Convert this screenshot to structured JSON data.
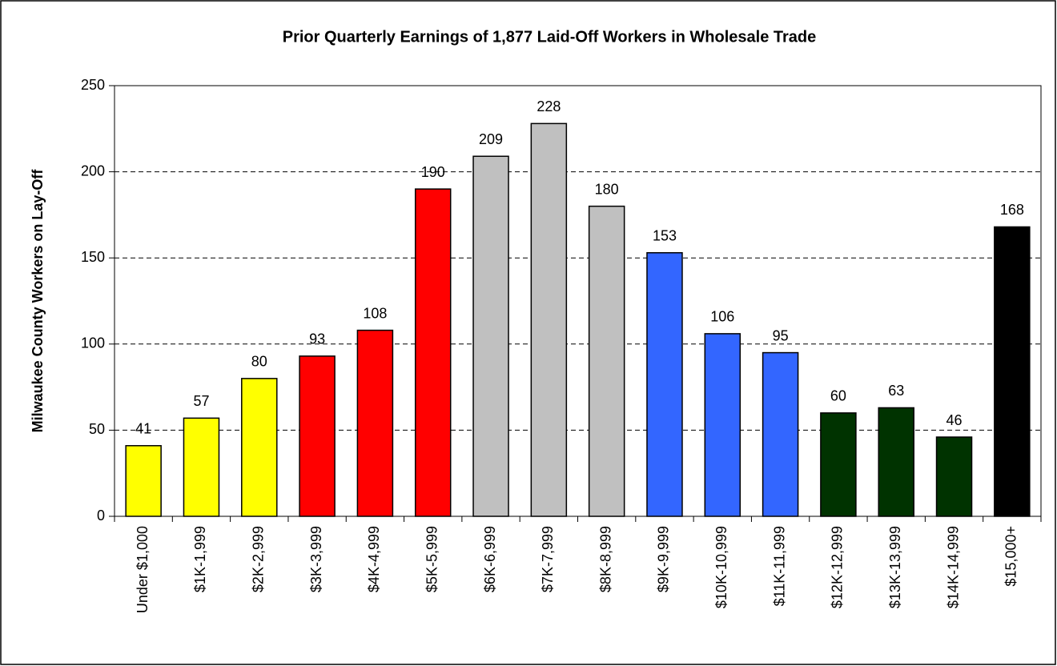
{
  "chart_data": {
    "type": "bar",
    "title": "Prior Quarterly Earnings of 1,877 Laid-Off Workers in Wholesale Trade",
    "y_label": "Milwaukee County Workers on Lay-Off",
    "categories": [
      "Under $1,000",
      "$1K-1,999",
      "$2K-2,999",
      "$3K-3,999",
      "$4K-4,999",
      "$5K-5,999",
      "$6K-6,999",
      "$7K-7,999",
      "$8K-8,999",
      "$9K-9,999",
      "$10K-10,999",
      "$11K-11,999",
      "$12K-12,999",
      "$13K-13,999",
      "$14K-14,999",
      "$15,000+"
    ],
    "values": [
      41,
      57,
      80,
      93,
      108,
      190,
      209,
      228,
      180,
      153,
      106,
      95,
      60,
      63,
      46,
      168
    ],
    "colors": [
      "#ffff00",
      "#ffff00",
      "#ffff00",
      "#ff0000",
      "#ff0000",
      "#ff0000",
      "#c0c0c0",
      "#c0c0c0",
      "#c0c0c0",
      "#3366ff",
      "#3366ff",
      "#3366ff",
      "#003300",
      "#003300",
      "#003300",
      "#000000"
    ],
    "ylim": [
      0,
      250
    ],
    "yticks": [
      0,
      50,
      100,
      150,
      200,
      250
    ],
    "grid": true
  }
}
